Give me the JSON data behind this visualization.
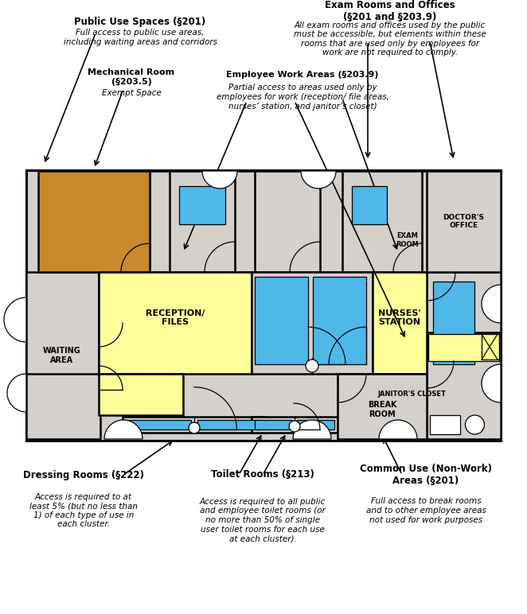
{
  "fig_width": 6.62,
  "fig_height": 7.72,
  "dpi": 100,
  "colors": {
    "bg": "#ffffff",
    "floor": "#d4d0cb",
    "mech": "#c8892a",
    "blue": "#4db8e8",
    "yellow": "#ffff99",
    "wall": "#000000",
    "white": "#ffffff"
  },
  "annotations": {
    "pub_use_title": "Public Use Spaces (§201)",
    "pub_use_body": "Full access to public use areas,\nincluding waiting areas and corridors",
    "mech_title": "Mechanical Room\n(§203.5)",
    "mech_body": "Exempt Space",
    "emp_title": "Employee Work Areas (§203.9)",
    "emp_body": "Partial access to areas used only by\nemployees for work (reception/ file areas,\nnurses’ station, and janitor’s closet)",
    "exam_title": "Exam Rooms and Offices\n(§201 and §203.9)",
    "exam_body": "All exam rooms and offices used by the public\nmust be accessible, but elements within these\nrooms that are used only by employees for\nwork are not required to comply.",
    "dress_title": "Dressing Rooms (§222)",
    "dress_body": "Access is required to at\nleast 5% (but no less than\n1) of each type of use in\neach cluster.",
    "toilet_title": "Toilet Rooms (§213)",
    "toilet_body": "Access is required to all public\nand employee toilet rooms (or\nno more than 50% of single\nuser toilet rooms for each use\nat each cluster).",
    "common_title": "Common Use (Non-Work)\nAreas (§201)",
    "common_body": "Full access to break rooms\nand to other employee areas\nnot used for work purposes"
  }
}
